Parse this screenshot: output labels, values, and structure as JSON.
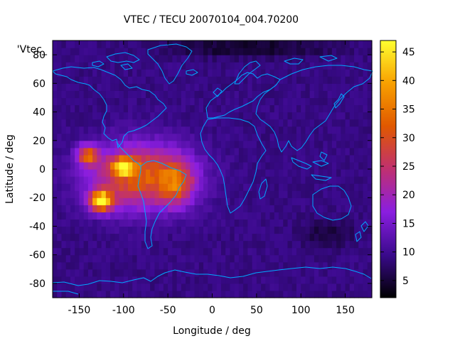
{
  "chart_data": {
    "type": "heatmap",
    "title": "VTEC / TECU 20070104_004.70200",
    "xlabel": "Longitude / deg",
    "ylabel": "Latitude / deg",
    "key_label": "'Vtec_",
    "xlim": [
      -180,
      180
    ],
    "ylim": [
      -90,
      90
    ],
    "x_ticks": [
      -150,
      -100,
      -50,
      0,
      50,
      100,
      150
    ],
    "y_ticks": [
      -80,
      -60,
      -40,
      -20,
      0,
      20,
      40,
      60,
      80
    ],
    "colorbar": {
      "range": [
        2,
        47
      ],
      "ticks": [
        5,
        10,
        15,
        20,
        25,
        30,
        35,
        40,
        45
      ],
      "palette": [
        "#000000",
        "#3a0a8c",
        "#8a1ee0",
        "#c03070",
        "#e05800",
        "#f8a000",
        "#ffff30"
      ]
    },
    "grid_resolution_deg": [
      5,
      5
    ],
    "background_tec": 9,
    "features": [
      {
        "name": "american-sector-anomaly",
        "lon": -80,
        "lat": -5,
        "peak_tec": 34,
        "sigma_lon": 55,
        "sigma_lat": 22
      },
      {
        "name": "south-pacific-peak",
        "lon": -125,
        "lat": -22,
        "peak_tec": 46,
        "sigma_lon": 14,
        "sigma_lat": 7
      },
      {
        "name": "equatorial-crest",
        "lon": -100,
        "lat": 2,
        "peak_tec": 36,
        "sigma_lon": 14,
        "sigma_lat": 6
      },
      {
        "name": "crest-west",
        "lon": -140,
        "lat": 10,
        "peak_tec": 32,
        "sigma_lon": 12,
        "sigma_lat": 7
      },
      {
        "name": "south-atlantic-extension",
        "lon": -40,
        "lat": -10,
        "peak_tec": 26,
        "sigma_lon": 18,
        "sigma_lat": 14
      },
      {
        "name": "polar-depletion-north",
        "lon": 40,
        "lat": 85,
        "peak_tec": 3,
        "sigma_lon": 90,
        "sigma_lat": 6
      },
      {
        "name": "depletion-australia",
        "lon": 130,
        "lat": -45,
        "peak_tec": 5,
        "sigma_lon": 30,
        "sigma_lat": 10
      }
    ]
  }
}
